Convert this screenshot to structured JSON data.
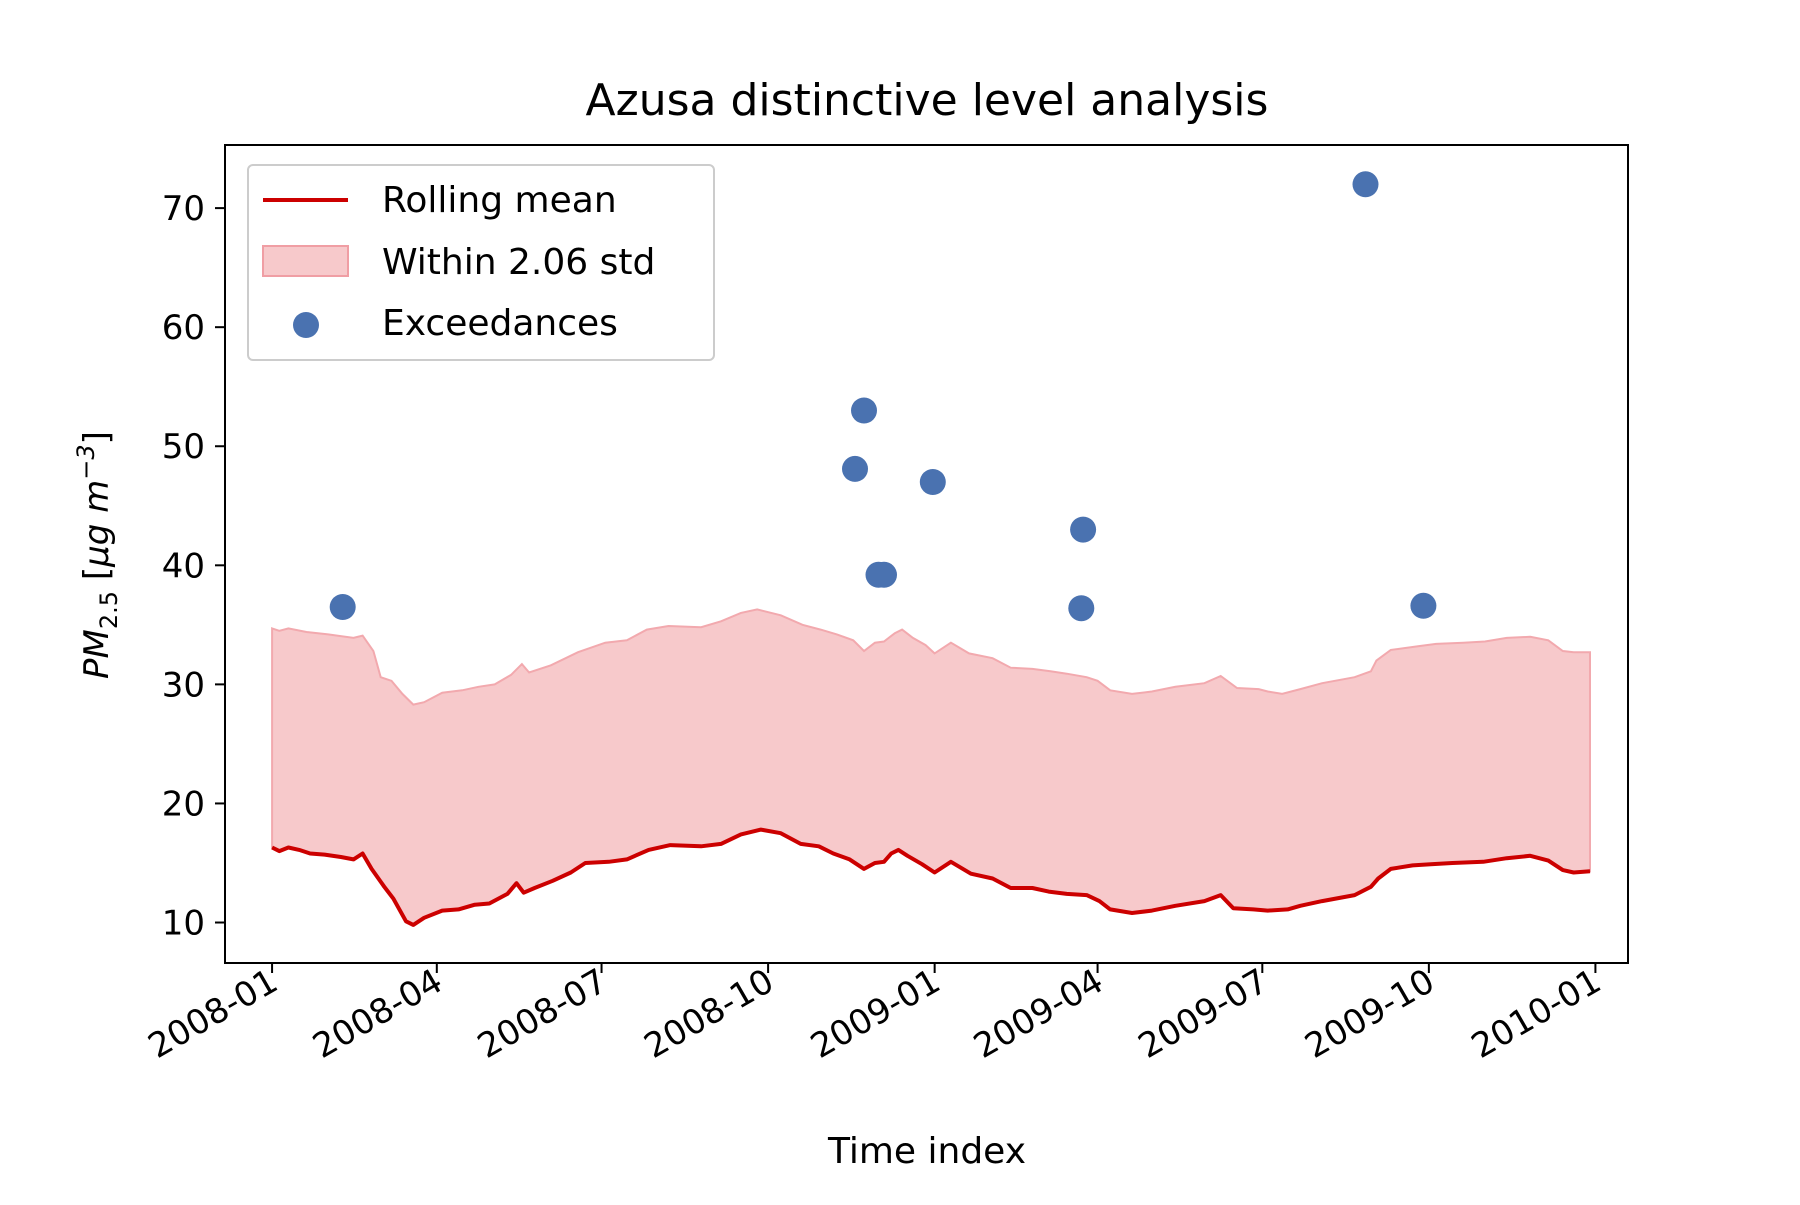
{
  "chart_data": {
    "type": "line",
    "title": "Azusa distinctive level analysis",
    "xlabel": "Time index",
    "ylabel": {
      "pm": "PM",
      "sub": "2.5",
      "open": " [",
      "mu": "μg m",
      "sup": "−3",
      "close": "]"
    },
    "xlim": [
      "2007-12-06",
      "2010-01-19"
    ],
    "ylim": [
      6.6,
      75.3
    ],
    "x_ticks": [
      "2008-01",
      "2008-04",
      "2008-07",
      "2008-10",
      "2009-01",
      "2009-04",
      "2009-07",
      "2009-10",
      "2010-01"
    ],
    "y_ticks": [
      10,
      20,
      30,
      40,
      50,
      60,
      70
    ],
    "grid": false,
    "legend_position": "top-left",
    "legend": [
      {
        "label": "Rolling mean",
        "kind": "line",
        "color": "#cc0000"
      },
      {
        "label": "Within 2.06 std",
        "kind": "area",
        "color": "#f7c9cb"
      },
      {
        "label": "Exceedances",
        "kind": "marker",
        "color": "#4a72b0"
      }
    ],
    "series": [
      {
        "name": "Rolling mean",
        "color": "#cc0000",
        "points": [
          [
            "2008-01-01",
            16.3
          ],
          [
            "2008-01-05",
            16.0
          ],
          [
            "2008-01-10",
            16.3
          ],
          [
            "2008-01-16",
            16.1
          ],
          [
            "2008-01-22",
            15.8
          ],
          [
            "2008-01-30",
            15.7
          ],
          [
            "2008-02-08",
            15.5
          ],
          [
            "2008-02-15",
            15.3
          ],
          [
            "2008-02-20",
            15.8
          ],
          [
            "2008-02-25",
            14.5
          ],
          [
            "2008-03-03",
            13.0
          ],
          [
            "2008-03-08",
            12.0
          ],
          [
            "2008-03-15",
            10.1
          ],
          [
            "2008-03-19",
            9.8
          ],
          [
            "2008-03-25",
            10.4
          ],
          [
            "2008-04-04",
            11.0
          ],
          [
            "2008-04-13",
            11.1
          ],
          [
            "2008-04-22",
            11.5
          ],
          [
            "2008-04-30",
            11.6
          ],
          [
            "2008-05-10",
            12.4
          ],
          [
            "2008-05-15",
            13.3
          ],
          [
            "2008-05-19",
            12.5
          ],
          [
            "2008-05-25",
            12.9
          ],
          [
            "2008-06-04",
            13.5
          ],
          [
            "2008-06-14",
            14.2
          ],
          [
            "2008-06-22",
            15.0
          ],
          [
            "2008-07-05",
            15.1
          ],
          [
            "2008-07-15",
            15.3
          ],
          [
            "2008-07-27",
            16.1
          ],
          [
            "2008-08-08",
            16.5
          ],
          [
            "2008-08-25",
            16.4
          ],
          [
            "2008-09-05",
            16.6
          ],
          [
            "2008-09-16",
            17.4
          ],
          [
            "2008-09-27",
            17.8
          ],
          [
            "2008-10-08",
            17.5
          ],
          [
            "2008-10-19",
            16.6
          ],
          [
            "2008-10-29",
            16.4
          ],
          [
            "2008-11-06",
            15.8
          ],
          [
            "2008-11-15",
            15.3
          ],
          [
            "2008-11-23",
            14.5
          ],
          [
            "2008-11-29",
            15.0
          ],
          [
            "2008-12-04",
            15.1
          ],
          [
            "2008-12-08",
            15.8
          ],
          [
            "2008-12-12",
            16.1
          ],
          [
            "2008-12-17",
            15.6
          ],
          [
            "2008-12-25",
            14.9
          ],
          [
            "2009-01-01",
            14.2
          ],
          [
            "2009-01-10",
            15.1
          ],
          [
            "2009-01-21",
            14.1
          ],
          [
            "2009-02-02",
            13.7
          ],
          [
            "2009-02-12",
            12.9
          ],
          [
            "2009-02-24",
            12.9
          ],
          [
            "2009-03-05",
            12.6
          ],
          [
            "2009-03-15",
            12.4
          ],
          [
            "2009-03-26",
            12.3
          ],
          [
            "2009-04-02",
            11.8
          ],
          [
            "2009-04-08",
            11.1
          ],
          [
            "2009-04-20",
            10.8
          ],
          [
            "2009-05-01",
            11.0
          ],
          [
            "2009-05-14",
            11.4
          ],
          [
            "2009-05-30",
            11.8
          ],
          [
            "2009-06-08",
            12.3
          ],
          [
            "2009-06-15",
            11.2
          ],
          [
            "2009-06-26",
            11.1
          ],
          [
            "2009-07-04",
            11.0
          ],
          [
            "2009-07-15",
            11.1
          ],
          [
            "2009-07-22",
            11.4
          ],
          [
            "2009-08-03",
            11.8
          ],
          [
            "2009-08-21",
            12.3
          ],
          [
            "2009-08-30",
            13.0
          ],
          [
            "2009-09-03",
            13.7
          ],
          [
            "2009-09-10",
            14.5
          ],
          [
            "2009-09-22",
            14.8
          ],
          [
            "2009-10-02",
            14.9
          ],
          [
            "2009-10-14",
            15.0
          ],
          [
            "2009-10-31",
            15.1
          ],
          [
            "2009-11-13",
            15.4
          ],
          [
            "2009-11-26",
            15.6
          ],
          [
            "2009-12-06",
            15.2
          ],
          [
            "2009-12-14",
            14.4
          ],
          [
            "2009-12-20",
            14.2
          ],
          [
            "2009-12-29",
            14.3
          ]
        ]
      },
      {
        "name": "Within 2.06 std",
        "color": "#f7c9cb",
        "upper": [
          [
            "2008-01-01",
            34.7
          ],
          [
            "2008-01-05",
            34.5
          ],
          [
            "2008-01-10",
            34.7
          ],
          [
            "2008-01-20",
            34.4
          ],
          [
            "2008-02-01",
            34.2
          ],
          [
            "2008-02-15",
            33.9
          ],
          [
            "2008-02-20",
            34.1
          ],
          [
            "2008-02-26",
            32.8
          ],
          [
            "2008-03-01",
            30.6
          ],
          [
            "2008-03-07",
            30.3
          ],
          [
            "2008-03-13",
            29.2
          ],
          [
            "2008-03-19",
            28.3
          ],
          [
            "2008-03-25",
            28.5
          ],
          [
            "2008-04-04",
            29.3
          ],
          [
            "2008-04-15",
            29.5
          ],
          [
            "2008-04-24",
            29.8
          ],
          [
            "2008-05-03",
            30.0
          ],
          [
            "2008-05-12",
            30.8
          ],
          [
            "2008-05-18",
            31.7
          ],
          [
            "2008-05-22",
            31.0
          ],
          [
            "2008-06-03",
            31.6
          ],
          [
            "2008-06-18",
            32.7
          ],
          [
            "2008-07-03",
            33.5
          ],
          [
            "2008-07-15",
            33.7
          ],
          [
            "2008-07-26",
            34.6
          ],
          [
            "2008-08-07",
            34.9
          ],
          [
            "2008-08-25",
            34.8
          ],
          [
            "2008-09-05",
            35.3
          ],
          [
            "2008-09-16",
            36.0
          ],
          [
            "2008-09-25",
            36.3
          ],
          [
            "2008-10-08",
            35.8
          ],
          [
            "2008-10-20",
            35.0
          ],
          [
            "2008-10-30",
            34.6
          ],
          [
            "2008-11-08",
            34.2
          ],
          [
            "2008-11-17",
            33.7
          ],
          [
            "2008-11-23",
            32.8
          ],
          [
            "2008-11-29",
            33.5
          ],
          [
            "2008-12-04",
            33.6
          ],
          [
            "2008-12-10",
            34.3
          ],
          [
            "2008-12-14",
            34.6
          ],
          [
            "2008-12-20",
            33.9
          ],
          [
            "2008-12-27",
            33.3
          ],
          [
            "2009-01-01",
            32.6
          ],
          [
            "2009-01-10",
            33.5
          ],
          [
            "2009-01-20",
            32.6
          ],
          [
            "2009-02-02",
            32.2
          ],
          [
            "2009-02-12",
            31.4
          ],
          [
            "2009-02-24",
            31.3
          ],
          [
            "2009-03-06",
            31.1
          ],
          [
            "2009-03-15",
            30.9
          ],
          [
            "2009-03-26",
            30.6
          ],
          [
            "2009-04-01",
            30.3
          ],
          [
            "2009-04-08",
            29.5
          ],
          [
            "2009-04-20",
            29.2
          ],
          [
            "2009-05-01",
            29.4
          ],
          [
            "2009-05-14",
            29.8
          ],
          [
            "2009-05-30",
            30.1
          ],
          [
            "2009-06-08",
            30.7
          ],
          [
            "2009-06-17",
            29.7
          ],
          [
            "2009-06-29",
            29.6
          ],
          [
            "2009-07-04",
            29.4
          ],
          [
            "2009-07-12",
            29.2
          ],
          [
            "2009-07-22",
            29.6
          ],
          [
            "2009-08-03",
            30.1
          ],
          [
            "2009-08-21",
            30.6
          ],
          [
            "2009-08-30",
            31.1
          ],
          [
            "2009-09-02",
            32.0
          ],
          [
            "2009-09-10",
            32.9
          ],
          [
            "2009-09-25",
            33.2
          ],
          [
            "2009-10-05",
            33.4
          ],
          [
            "2009-10-20",
            33.5
          ],
          [
            "2009-11-01",
            33.6
          ],
          [
            "2009-11-13",
            33.9
          ],
          [
            "2009-11-26",
            34.0
          ],
          [
            "2009-12-06",
            33.7
          ],
          [
            "2009-12-14",
            32.8
          ],
          [
            "2009-12-20",
            32.7
          ],
          [
            "2009-12-29",
            32.7
          ]
        ]
      },
      {
        "name": "Exceedances",
        "color": "#4a72b0",
        "points": [
          [
            "2008-02-09",
            36.5
          ],
          [
            "2008-11-18",
            48.1
          ],
          [
            "2008-11-23",
            53.0
          ],
          [
            "2008-12-01",
            39.2
          ],
          [
            "2008-12-04",
            39.2
          ],
          [
            "2008-12-31",
            47.0
          ],
          [
            "2009-03-23",
            36.4
          ],
          [
            "2009-03-24",
            43.0
          ],
          [
            "2009-08-27",
            72.0
          ],
          [
            "2009-09-28",
            36.6
          ]
        ]
      }
    ]
  }
}
